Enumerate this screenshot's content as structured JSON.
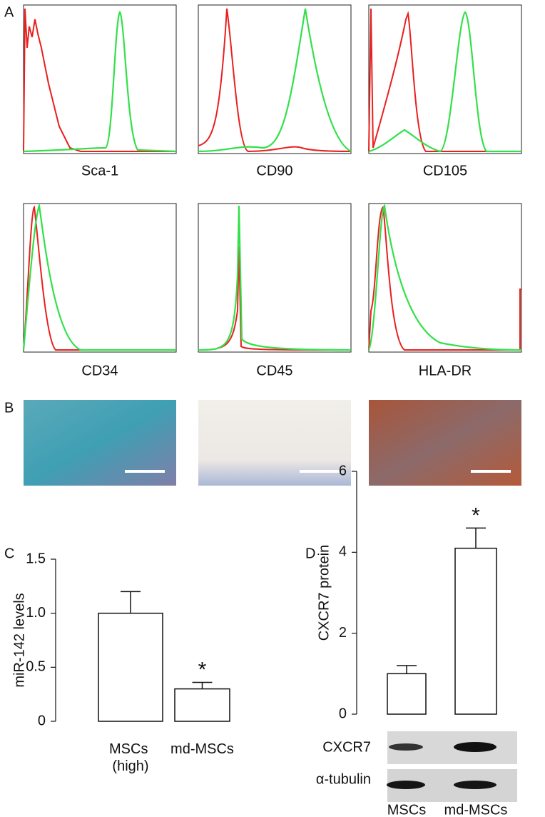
{
  "figure": {
    "panel_labels": [
      "A",
      "B",
      "C",
      "D"
    ],
    "markers": [
      "Sca-1",
      "CD90",
      "CD105",
      "CD34",
      "CD45",
      "HLA-DR"
    ],
    "blot_labels": [
      "CXCR7",
      "α-tubulin"
    ]
  },
  "chart_data": [
    {
      "type": "bar",
      "y_label": "miR-142 levels",
      "categories": [
        "MSCs (high)",
        "md-MSCs"
      ],
      "values": [
        1.0,
        0.3
      ],
      "errors": [
        0.2,
        0.06
      ],
      "annotation": "*",
      "color": "#ffffff",
      "ylim": [
        0,
        1.5
      ],
      "yticks": [
        0,
        0.5,
        {
          "value": 1,
          "label": "1.0"
        },
        1.5
      ]
    },
    {
      "type": "bar",
      "y_label": "CXCR7 protein",
      "categories": [
        "MSCs",
        "md-MSCs"
      ],
      "values": [
        1.0,
        4.1
      ],
      "errors": [
        0.2,
        0.5
      ],
      "annotation": "*",
      "color": "#ffffff",
      "ylim": [
        0,
        6
      ],
      "yticks": [
        0,
        2,
        4,
        6
      ]
    }
  ]
}
